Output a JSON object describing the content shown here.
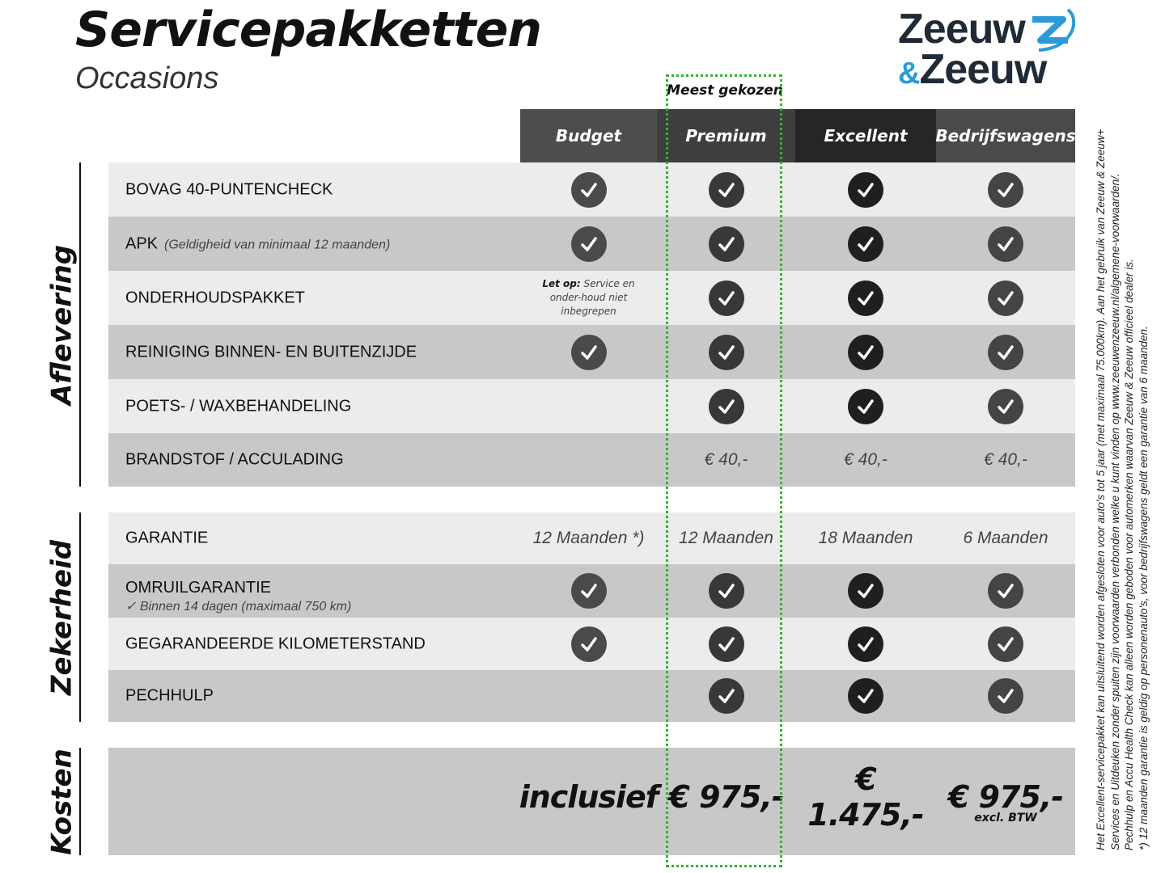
{
  "header": {
    "title": "Servicepakketten",
    "subtitle": "Occasions"
  },
  "logo": {
    "line1": "Zeeuw",
    "line2_amp": "&",
    "line2": "Zeeuw",
    "accent": "#2b9bd8",
    "color": "#1f2a36"
  },
  "highlight": {
    "label": "Meest gekozen",
    "color": "#2fb52f"
  },
  "columns": [
    {
      "name": "Budget",
      "header_color": "#4d4d4d",
      "check_color": "#4a4a4a"
    },
    {
      "name": "Premium",
      "header_color": "#3e3e3e",
      "check_color": "#383838"
    },
    {
      "name": "Excellent",
      "header_color": "#262626",
      "check_color": "#1f1f1f"
    },
    {
      "name": "Bedrijfswagens",
      "header_color": "#4a4a4a",
      "check_color": "#444444"
    }
  ],
  "sections": [
    {
      "label": "Aflevering",
      "rows": [
        {
          "label": "BOVAG 40-PUNTENCHECK",
          "cells": [
            "check",
            "check",
            "check",
            "check"
          ]
        },
        {
          "label": "APK",
          "sub": "(Geldigheid van minimaal 12 maanden)",
          "cells": [
            "check",
            "check",
            "check",
            "check"
          ]
        },
        {
          "label": "ONDERHOUDSPAKKET",
          "cells": [
            {
              "note_bold": "Let op:",
              "note": "Service en onder-houd niet inbegrepen"
            },
            "check",
            "check",
            "check"
          ]
        },
        {
          "label": "REINIGING BINNEN- EN BUITENZIJDE",
          "cells": [
            "check",
            "check",
            "check",
            "check"
          ]
        },
        {
          "label": "POETS- / WAXBEHANDELING",
          "cells": [
            "",
            "check",
            "check",
            "check"
          ]
        },
        {
          "label": "BRANDSTOF / ACCULADING",
          "cells": [
            "",
            "€ 40,-",
            "€ 40,-",
            "€ 40,-"
          ]
        }
      ]
    },
    {
      "label": "Zekerheid",
      "rows": [
        {
          "label": "GARANTIE",
          "cells": [
            "12 Maanden *)",
            "12 Maanden",
            "18 Maanden",
            "6 Maanden"
          ]
        },
        {
          "label": "OMRUILGARANTIE",
          "sublabel": "✓   Binnen 14 dagen (maximaal 750 km)",
          "cells": [
            "check",
            "check",
            "check",
            "check"
          ]
        },
        {
          "label": "GEGARANDEERDE KILOMETERSTAND",
          "cells": [
            "check",
            "check",
            "check",
            "check"
          ]
        },
        {
          "label": "PECHHULP",
          "cells": [
            "",
            "check",
            "check",
            "check"
          ]
        }
      ]
    },
    {
      "label": "Kosten",
      "prices": [
        {
          "value": "inclusief"
        },
        {
          "value": "€ 975,-"
        },
        {
          "value": "€ 1.475,-"
        },
        {
          "value": "€ 975,-",
          "note": "excl. BTW"
        }
      ]
    }
  ],
  "footnotes": [
    "Het Excellent-servicepakket kan uitsluitend worden afgesloten voor auto's tot 5 jaar (met maximaal 75.000km). Aan het gebruik van Zeeuw & Zeeuw+",
    "Services en Uitdeuken zonder spuiten zijn voorwaarden verbonden welke u kunt vinden op www.zeeuwenzeeuw.nl/algemene-voorwaarden/.",
    "Pechhulp en Accu Health Check kan alleen worden geboden voor automerken waarvan Zeeuw & Zeeuw officieel dealer is.",
    "*) 12 maanden garantie is geldig op personenauto's, voor bedrijfswagens geldt een garantie van 6 maanden."
  ]
}
